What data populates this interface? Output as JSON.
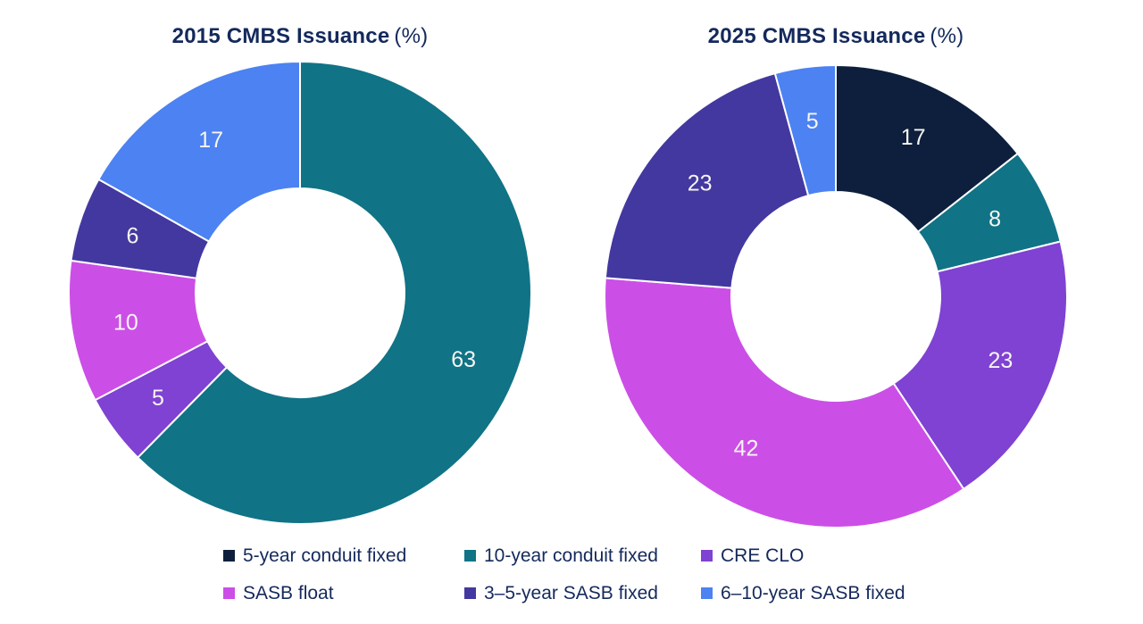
{
  "page": {
    "background": "#ffffff"
  },
  "chart_data": [
    {
      "type": "pie",
      "subtype": "donut",
      "title": "2015 CMBS Issuance (%)",
      "title_main": "2015 CMBS Issuance",
      "title_suffix": "(%)",
      "unit": "%",
      "labels": [
        "10-year conduit fixed",
        "CRE CLO",
        "SASB float",
        "3–5-year SASB fixed",
        "6–10-year SASB fixed"
      ],
      "values": [
        63,
        5,
        10,
        6,
        17
      ],
      "colors": [
        "#107386",
        "#7f42d2",
        "#cb4fe6",
        "#4338a0",
        "#4c82f2"
      ],
      "start_angle_deg": 0,
      "direction": "clockwise",
      "inner_radius_ratio": 0.45,
      "label_position": "inside",
      "legend_position": "bottom"
    },
    {
      "type": "pie",
      "subtype": "donut",
      "title": "2025 CMBS Issuance (%)",
      "title_main": "2025 CMBS Issuance",
      "title_suffix": "(%)",
      "unit": "%",
      "labels": [
        "5-year conduit fixed",
        "10-year conduit fixed",
        "CRE CLO",
        "SASB float",
        "3–5-year SASB fixed",
        "6–10-year SASB fixed"
      ],
      "values": [
        17,
        8,
        23,
        42,
        23,
        5
      ],
      "colors": [
        "#0d1f3c",
        "#107386",
        "#7f42d2",
        "#cb4fe6",
        "#4338a0",
        "#4c82f2"
      ],
      "start_angle_deg": 0,
      "direction": "clockwise",
      "inner_radius_ratio": 0.45,
      "label_position": "inside",
      "legend_position": "bottom"
    }
  ],
  "legend": {
    "position": "bottom",
    "rows": 2,
    "columns": 3,
    "items": [
      {
        "label": "5-year conduit fixed",
        "color": "#0d1f3c"
      },
      {
        "label": "10-year conduit fixed",
        "color": "#107386"
      },
      {
        "label": "CRE CLO",
        "color": "#7f42d2"
      },
      {
        "label": "SASB float",
        "color": "#cb4fe6"
      },
      {
        "label": "3–5-year SASB fixed",
        "color": "#4338a0"
      },
      {
        "label": "6–10-year SASB fixed",
        "color": "#4c82f2"
      }
    ]
  },
  "text_colors": {
    "title": "#14295c",
    "legend": "#14295c",
    "segment_label": "#f7f5f2"
  }
}
